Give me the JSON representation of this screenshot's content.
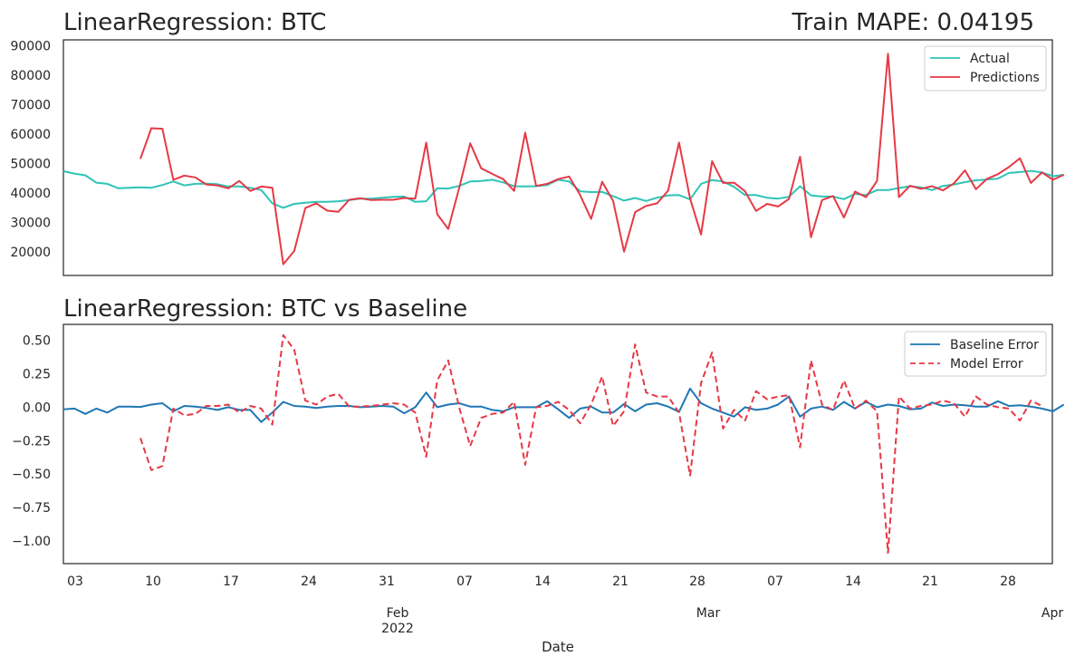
{
  "chart_data": [
    {
      "type": "line",
      "title": "LinearRegression: BTC",
      "title_right": "Train MAPE: 0.04195",
      "ylim": [
        12000,
        92000
      ],
      "yticks": [
        20000,
        30000,
        40000,
        50000,
        60000,
        70000,
        80000,
        90000
      ],
      "legend_position": "top-right",
      "grid": false,
      "series": [
        {
          "name": "Actual",
          "color": "#2ec4b6",
          "values": [
            47400,
            46600,
            46000,
            43500,
            43100,
            41600,
            41800,
            41900,
            41800,
            42700,
            43900,
            42600,
            43100,
            43200,
            43000,
            42200,
            42200,
            41800,
            41000,
            36500,
            35000,
            36300,
            36700,
            37000,
            37000,
            37200,
            37600,
            38100,
            38100,
            38400,
            38700,
            38800,
            37000,
            37200,
            41600,
            41500,
            42400,
            43900,
            44100,
            44500,
            43600,
            42300,
            42200,
            42300,
            42700,
            44500,
            43900,
            40600,
            40300,
            40400,
            38900,
            37400,
            38300,
            37300,
            38400,
            39200,
            39300,
            37800,
            43100,
            44400,
            43900,
            42100,
            39300,
            39300,
            38400,
            38100,
            38700,
            42300,
            39200,
            38800,
            38800,
            37900,
            39700,
            39300,
            41000,
            41000,
            41700,
            42300,
            41900,
            41000,
            42400,
            42900,
            43700,
            44300,
            44600,
            44900,
            46800,
            47100,
            47500,
            47000,
            45700,
            46200
          ]
        },
        {
          "name": "Predictions",
          "color": "#e63946",
          "values": [
            null,
            null,
            null,
            null,
            null,
            null,
            null,
            51600,
            62000,
            61800,
            44500,
            45900,
            45300,
            42900,
            42600,
            41600,
            44100,
            40700,
            42200,
            41800,
            15800,
            20300,
            34900,
            36500,
            34000,
            33600,
            37700,
            38200,
            37600,
            37700,
            37700,
            38300,
            38100,
            57100,
            32800,
            27800,
            41700,
            56900,
            48400,
            46500,
            44700,
            40700,
            60500,
            42400,
            43100,
            44700,
            45600,
            39300,
            31200,
            43800,
            37300,
            20100,
            33500,
            35600,
            36500,
            40800,
            57100,
            38100,
            25900,
            50800,
            43400,
            43500,
            40600,
            33900,
            36300,
            35400,
            38000,
            52300,
            25000,
            37600,
            39000,
            31700,
            40500,
            38600,
            44100,
            87300,
            38600,
            42500,
            41400,
            42300,
            40900,
            43300,
            47700,
            41300,
            44800,
            46400,
            48800,
            51800,
            43400,
            47000,
            44500,
            46200
          ]
        }
      ]
    },
    {
      "type": "line",
      "title": "LinearRegression: BTC vs Baseline",
      "ylim": [
        -1.17,
        0.62
      ],
      "yticks": [
        0.5,
        0.25,
        0.0,
        -0.25,
        -0.5,
        -0.75,
        -1.0
      ],
      "xlabel": "Date",
      "x_tick_labels": [
        "03",
        "10",
        "17",
        "24",
        "31",
        "07",
        "14",
        "21",
        "28",
        "07",
        "14",
        "21",
        "28"
      ],
      "x_major_labels": [
        {
          "line1": "Feb",
          "line2": "2022"
        },
        {
          "line1": "Mar",
          "line2": ""
        },
        {
          "line1": "Apr",
          "line2": ""
        }
      ],
      "legend_position": "top-right",
      "grid": false,
      "series": [
        {
          "name": "Baseline Error",
          "color": "#1f77b4",
          "style": "solid",
          "values": [
            -0.015,
            -0.01,
            -0.05,
            -0.01,
            -0.04,
            0.005,
            0.005,
            0.002,
            0.02,
            0.03,
            -0.03,
            0.01,
            0.005,
            -0.005,
            -0.02,
            0.0,
            -0.02,
            -0.02,
            -0.11,
            -0.04,
            0.04,
            0.01,
            0.005,
            -0.005,
            0.005,
            0.01,
            0.01,
            0.0,
            0.005,
            0.01,
            0.005,
            -0.045,
            0.0,
            0.11,
            0.0,
            0.02,
            0.03,
            0.005,
            0.005,
            -0.02,
            -0.03,
            0.0,
            0.0,
            0.0,
            0.045,
            -0.015,
            -0.08,
            -0.01,
            0.005,
            -0.04,
            -0.04,
            0.025,
            -0.03,
            0.02,
            0.03,
            0.005,
            -0.035,
            0.14,
            0.03,
            -0.01,
            -0.04,
            -0.07,
            0.0,
            -0.02,
            -0.01,
            0.02,
            0.08,
            -0.07,
            -0.01,
            0.005,
            -0.02,
            0.04,
            -0.01,
            0.04,
            0.0,
            0.02,
            0.01,
            -0.015,
            -0.01,
            0.035,
            0.01,
            0.02,
            0.015,
            0.005,
            0.005,
            0.045,
            0.01,
            0.015,
            0.005,
            -0.01,
            -0.03,
            0.02
          ]
        },
        {
          "name": "Model Error",
          "color": "#e63946",
          "style": "dashed",
          "values": [
            null,
            null,
            null,
            null,
            null,
            null,
            null,
            -0.23,
            -0.47,
            -0.44,
            -0.01,
            -0.06,
            -0.05,
            0.01,
            0.01,
            0.02,
            -0.04,
            0.01,
            -0.01,
            -0.13,
            0.54,
            0.43,
            0.05,
            0.02,
            0.08,
            0.1,
            0.005,
            0.005,
            0.01,
            0.02,
            0.03,
            0.02,
            -0.04,
            -0.37,
            0.2,
            0.35,
            0.0,
            -0.29,
            -0.08,
            -0.05,
            -0.04,
            0.04,
            -0.43,
            0.0,
            0.01,
            0.04,
            -0.02,
            -0.12,
            0.02,
            0.23,
            -0.14,
            -0.03,
            0.47,
            0.11,
            0.08,
            0.08,
            -0.04,
            -0.51,
            0.18,
            0.41,
            -0.16,
            -0.02,
            -0.1,
            0.12,
            0.06,
            0.08,
            0.09,
            -0.3,
            0.35,
            0.02,
            -0.02,
            0.2,
            -0.01,
            0.05,
            -0.03,
            -1.09,
            0.08,
            -0.01,
            0.01,
            0.02,
            0.05,
            0.03,
            -0.07,
            0.08,
            0.02,
            0.0,
            -0.01,
            -0.1,
            0.05,
            0.01
          ]
        }
      ]
    }
  ]
}
